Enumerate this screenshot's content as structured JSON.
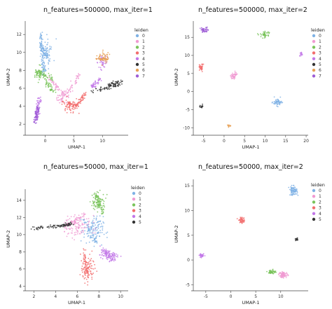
{
  "legend_title": "leiden",
  "palette": [
    "#7fb2e5",
    "#f09ad2",
    "#79c35a",
    "#f26d6d",
    "#c277e8",
    "#333333",
    "#e8a055",
    "#9d5cd6"
  ],
  "chart_data": [
    {
      "type": "scatter",
      "title": "n_features=500000, max_iter=1",
      "xlabel": "UMAP-1",
      "ylabel": "UMAP-2",
      "xlim": [
        -3.5,
        14.5
      ],
      "ylim": [
        1.0,
        13.5
      ],
      "xticks": [
        0,
        5,
        10
      ],
      "yticks": [
        2,
        4,
        6,
        8,
        10,
        12
      ],
      "legend": [
        "0",
        "1",
        "2",
        "3",
        "4",
        "5",
        "6",
        "7"
      ],
      "clusters": [
        {
          "label": "0",
          "segments": [
            [
              -0.8,
              12.5,
              -0.5,
              9.5
            ],
            [
              -0.5,
              9.5,
              -0.2,
              7.5
            ],
            [
              -0.8,
              10.8,
              0.5,
              9.5
            ]
          ],
          "blobs": [
            [
              0.2,
              10,
              0.9,
              1.5,
              55
            ]
          ]
        },
        {
          "label": "1",
          "segments": [
            [
              0.5,
              7.2,
              3.5,
              5.2
            ],
            [
              3.5,
              5.2,
              6,
              7.5
            ]
          ],
          "blobs": [
            [
              3,
              5,
              1.2,
              0.8,
              40
            ]
          ]
        },
        {
          "label": "2",
          "segments": [
            [
              -1.8,
              8,
              1.2,
              7
            ],
            [
              0,
              7,
              1.5,
              5.5
            ]
          ],
          "blobs": [
            [
              -1,
              7.5,
              0.9,
              0.8,
              50
            ]
          ]
        },
        {
          "label": "3",
          "segments": [
            [
              3,
              4.5,
              5.5,
              4
            ],
            [
              5.5,
              4,
              7,
              5.5
            ]
          ],
          "blobs": [
            [
              4.5,
              4,
              1.5,
              0.8,
              55
            ]
          ]
        },
        {
          "label": "4",
          "segments": [
            [
              -1.5,
              2.5,
              -1,
              5
            ],
            [
              8,
              6,
              9.5,
              7
            ]
          ],
          "blobs": [
            [
              10,
              9,
              0.9,
              0.8,
              40
            ],
            [
              -1.5,
              3.2,
              0.3,
              1,
              20
            ]
          ]
        },
        {
          "label": "5",
          "segments": [
            [
              8,
              5.6,
              13,
              6.4
            ],
            [
              11,
              6.3,
              13.5,
              6.8
            ]
          ],
          "blobs": []
        },
        {
          "label": "6",
          "segments": [
            [
              9,
              9.3,
              11,
              9.2
            ]
          ],
          "blobs": [
            [
              10.3,
              9.7,
              0.9,
              0.6,
              30
            ]
          ]
        },
        {
          "label": "7",
          "segments": [
            [
              -1.8,
              2,
              -1.2,
              4.2
            ]
          ],
          "blobs": [
            [
              -1.6,
              3,
              0.3,
              0.8,
              20
            ]
          ]
        }
      ]
    },
    {
      "type": "scatter",
      "title": "n_features=500000, max_iter=2",
      "xlabel": "UMAP-1",
      "ylabel": "UMAP-2",
      "xlim": [
        -7.5,
        20.5
      ],
      "ylim": [
        -11.5,
        19.5
      ],
      "xticks": [
        -5,
        0,
        5,
        10,
        15,
        20
      ],
      "yticks": [
        -10,
        -5,
        0,
        5,
        10,
        15
      ],
      "legend": [
        "0",
        "1",
        "2",
        "3",
        "4",
        "5",
        "6",
        "7"
      ],
      "clusters": [
        {
          "label": "0",
          "segments": [],
          "blobs": [
            [
              13,
              -3,
              1.2,
              0.9,
              55
            ]
          ]
        },
        {
          "label": "1",
          "segments": [],
          "blobs": [
            [
              2.5,
              4.5,
              0.8,
              0.9,
              45
            ]
          ]
        },
        {
          "label": "2",
          "segments": [],
          "blobs": [
            [
              9.8,
              15.8,
              1.2,
              0.8,
              45
            ]
          ]
        },
        {
          "label": "3",
          "segments": [],
          "blobs": [
            [
              -5.5,
              6.6,
              0.5,
              1.0,
              35
            ]
          ]
        },
        {
          "label": "4",
          "segments": [],
          "blobs": [
            [
              18.8,
              10.3,
              0.3,
              0.6,
              15
            ]
          ]
        },
        {
          "label": "5",
          "segments": [],
          "blobs": [
            [
              -5.6,
              -4.2,
              0.5,
              0.4,
              15
            ]
          ]
        },
        {
          "label": "6",
          "segments": [],
          "blobs": [
            [
              1.2,
              -9.4,
              0.5,
              0.3,
              12
            ]
          ]
        },
        {
          "label": "7",
          "segments": [],
          "blobs": [
            [
              -4.8,
              17,
              0.9,
              0.8,
              40
            ]
          ]
        }
      ]
    },
    {
      "type": "scatter",
      "title": "n_features=50000, max_iter=1",
      "xlabel": "UMAP-1",
      "ylabel": "UMAP-2",
      "xlim": [
        1.2,
        10.7
      ],
      "ylim": [
        3.7,
        15.3
      ],
      "xticks": [
        2,
        4,
        6,
        8,
        10
      ],
      "yticks": [
        4,
        6,
        8,
        10,
        12,
        14
      ],
      "legend": [
        "0",
        "1",
        "2",
        "3",
        "4",
        "5"
      ],
      "clusters": [
        {
          "label": "0",
          "segments": [
            [
              6.5,
              12,
              7.8,
              9
            ]
          ],
          "blobs": [
            [
              7.5,
              10.5,
              0.9,
              1.6,
              110
            ]
          ]
        },
        {
          "label": "1",
          "segments": [
            [
              5,
              11,
              6.8,
              12.5
            ]
          ],
          "blobs": [
            [
              6,
              11,
              1.2,
              1.2,
              110
            ]
          ]
        },
        {
          "label": "2",
          "segments": [
            [
              7.6,
              14.8,
              8.4,
              12.5
            ]
          ],
          "blobs": [
            [
              8,
              13.8,
              0.6,
              1.0,
              90
            ]
          ]
        },
        {
          "label": "3",
          "segments": [
            [
              6.5,
              8.5,
              7,
              5
            ]
          ],
          "blobs": [
            [
              7,
              6,
              0.7,
              1.4,
              90
            ]
          ]
        },
        {
          "label": "4",
          "segments": [
            [
              8.3,
              8.3,
              9.3,
              7
            ]
          ],
          "blobs": [
            [
              8.9,
              7.6,
              0.8,
              0.6,
              80
            ]
          ]
        },
        {
          "label": "5",
          "segments": [
            [
              1.9,
              10.7,
              4.5,
              11
            ],
            [
              4.5,
              11,
              5.5,
              11.3
            ]
          ],
          "blobs": []
        }
      ]
    },
    {
      "type": "scatter",
      "title": "n_features=50000, max_iter=2",
      "xlabel": "UMAP-1",
      "ylabel": "UMAP-2",
      "xlim": [
        -7.5,
        15.5
      ],
      "ylim": [
        -5.8,
        16.3
      ],
      "xticks": [
        -5,
        0,
        5,
        10
      ],
      "yticks": [
        -5,
        0,
        5,
        10,
        15
      ],
      "legend": [
        "0",
        "1",
        "2",
        "3",
        "4",
        "5"
      ],
      "clusters": [
        {
          "label": "0",
          "segments": [],
          "blobs": [
            [
              12.5,
              14,
              0.8,
              0.9,
              80
            ]
          ]
        },
        {
          "label": "1",
          "segments": [],
          "blobs": [
            [
              10.5,
              -3,
              0.9,
              0.6,
              75
            ]
          ]
        },
        {
          "label": "2",
          "segments": [],
          "blobs": [
            [
              8.3,
              -2.4,
              0.7,
              0.4,
              55
            ]
          ]
        },
        {
          "label": "3",
          "segments": [],
          "blobs": [
            [
              2.2,
              8,
              0.6,
              0.6,
              50
            ]
          ]
        },
        {
          "label": "4",
          "segments": [],
          "blobs": [
            [
              -5.8,
              0.9,
              0.5,
              0.3,
              30
            ]
          ]
        },
        {
          "label": "5",
          "segments": [],
          "blobs": [
            [
              13.2,
              4.1,
              0.3,
              0.3,
              15
            ]
          ]
        }
      ]
    }
  ]
}
